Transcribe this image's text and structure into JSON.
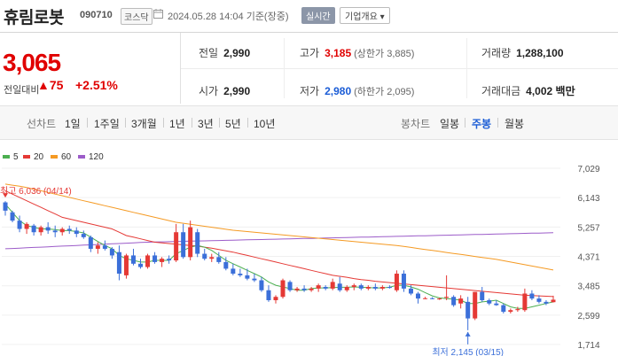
{
  "header": {
    "name": "휴림로봇",
    "code": "090710",
    "market": "코스닥",
    "datetime": "2024.05.28 14:04 기준(장중)",
    "realtime": "실시간",
    "company": "기업개요 ▾"
  },
  "price": {
    "current": "3,065",
    "change_label": "전일대비",
    "change": "▲75",
    "change_pct": "+2.51%"
  },
  "stats": {
    "prev_close_label": "전일",
    "prev_close": "2,990",
    "high_label": "고가",
    "high": "3,185",
    "upper_limit": "(상한가 3,885)",
    "volume_label": "거래량",
    "volume": "1,288,100",
    "open_label": "시가",
    "open": "2,990",
    "low_label": "저가",
    "low": "2,980",
    "lower_limit": "(하한가 2,095)",
    "value_label": "거래대금",
    "value": "4,002 백만"
  },
  "tabs": {
    "line_label": "선차트",
    "line_items": [
      "1일",
      "1주일",
      "3개월",
      "1년",
      "3년",
      "5년",
      "10년"
    ],
    "candle_label": "봉차트",
    "candle_items": [
      "일봉",
      "주봉",
      "월봉"
    ],
    "active_candle": "주봉"
  },
  "legend": [
    {
      "label": "5",
      "color": "#4caf50"
    },
    {
      "label": "20",
      "color": "#e53935"
    },
    {
      "label": "60",
      "color": "#f59a23"
    },
    {
      "label": "120",
      "color": "#9c5cc9"
    }
  ],
  "chart_data": {
    "type": "candlestick",
    "period": "weekly",
    "y_ticks": [
      "7,029",
      "6,143",
      "5,257",
      "4,371",
      "3,485",
      "2,599",
      "1,714"
    ],
    "ylim": [
      1714,
      7029
    ],
    "high_annotation": "최고 6,036 (04/14)",
    "low_annotation": "최저 2,145 (03/15)",
    "up_color": "#e53935",
    "down_color": "#3b6fd9",
    "candles": [
      [
        6000,
        6036,
        5600,
        5750
      ],
      [
        5700,
        5750,
        5400,
        5450
      ],
      [
        5450,
        5600,
        5100,
        5200
      ],
      [
        5200,
        5400,
        5050,
        5350
      ],
      [
        5300,
        5350,
        5000,
        5100
      ],
      [
        5100,
        5300,
        5000,
        5250
      ],
      [
        5250,
        5400,
        5050,
        5150
      ],
      [
        5150,
        5300,
        4950,
        5100
      ],
      [
        5100,
        5250,
        5000,
        5200
      ],
      [
        5200,
        5300,
        5050,
        5150
      ],
      [
        5150,
        5250,
        4950,
        5050
      ],
      [
        5050,
        5150,
        4900,
        4950
      ],
      [
        4950,
        5000,
        4500,
        4600
      ],
      [
        4600,
        4800,
        4450,
        4700
      ],
      [
        4700,
        4850,
        4550,
        4600
      ],
      [
        4600,
        4650,
        4300,
        4400
      ],
      [
        4500,
        4700,
        3650,
        3850
      ],
      [
        3800,
        4450,
        3700,
        4400
      ],
      [
        4400,
        4600,
        4100,
        4150
      ],
      [
        4150,
        4300,
        4000,
        4050
      ],
      [
        4050,
        4450,
        4000,
        4400
      ],
      [
        4400,
        4500,
        4150,
        4200
      ],
      [
        4200,
        4350,
        4050,
        4300
      ],
      [
        4300,
        4400,
        4150,
        4250
      ],
      [
        4250,
        5350,
        4200,
        5100
      ],
      [
        5100,
        5350,
        4300,
        4350
      ],
      [
        4350,
        5450,
        4250,
        5250
      ],
      [
        5100,
        5200,
        4350,
        4450
      ],
      [
        4450,
        4600,
        4250,
        4300
      ],
      [
        4300,
        4450,
        4200,
        4350
      ],
      [
        4350,
        4500,
        4150,
        4200
      ],
      [
        4200,
        4350,
        3950,
        4000
      ],
      [
        4000,
        4150,
        3800,
        3850
      ],
      [
        3850,
        4000,
        3750,
        3800
      ],
      [
        3800,
        4000,
        3650,
        3700
      ],
      [
        3700,
        3850,
        3600,
        3650
      ],
      [
        3650,
        3750,
        3300,
        3350
      ],
      [
        3350,
        3500,
        3000,
        3050
      ],
      [
        3050,
        3200,
        2950,
        3150
      ],
      [
        3150,
        3700,
        3100,
        3650
      ],
      [
        3600,
        3650,
        3300,
        3350
      ],
      [
        3350,
        3450,
        3300,
        3400
      ],
      [
        3400,
        3500,
        3300,
        3350
      ],
      [
        3350,
        3450,
        3300,
        3400
      ],
      [
        3400,
        3550,
        3300,
        3500
      ],
      [
        3450,
        3500,
        3350,
        3400
      ],
      [
        3400,
        3700,
        3350,
        3600
      ],
      [
        3550,
        3750,
        3300,
        3350
      ],
      [
        3350,
        3500,
        3300,
        3450
      ],
      [
        3450,
        3550,
        3350,
        3500
      ],
      [
        3500,
        3550,
        3350,
        3400
      ],
      [
        3400,
        3500,
        3350,
        3450
      ],
      [
        3450,
        3550,
        3350,
        3400
      ],
      [
        3400,
        3500,
        3350,
        3450
      ],
      [
        3450,
        3500,
        3400,
        3420
      ],
      [
        3350,
        3950,
        3300,
        3850
      ],
      [
        3850,
        3950,
        3300,
        3400
      ],
      [
        3400,
        3500,
        3200,
        3250
      ],
      [
        3250,
        3300,
        2950,
        3100
      ],
      [
        3100,
        3150,
        3080,
        3110
      ],
      [
        3110,
        3140,
        3080,
        3090
      ],
      [
        3090,
        3120,
        3060,
        3100
      ],
      [
        3150,
        3800,
        3050,
        3150
      ],
      [
        3150,
        3200,
        2850,
        2900
      ],
      [
        2950,
        3200,
        2800,
        3100
      ],
      [
        3000,
        3150,
        2145,
        2500
      ],
      [
        2500,
        3300,
        2450,
        3300
      ],
      [
        3300,
        3450,
        3000,
        3050
      ],
      [
        3050,
        3100,
        2900,
        2950
      ],
      [
        2950,
        3050,
        2880,
        2900
      ],
      [
        2900,
        2950,
        2650,
        2700
      ],
      [
        2700,
        2800,
        2650,
        2750
      ],
      [
        2750,
        2850,
        2700,
        2780
      ],
      [
        2750,
        3400,
        2700,
        3250
      ],
      [
        3250,
        3350,
        3050,
        3100
      ],
      [
        3100,
        3200,
        2950,
        3000
      ],
      [
        3000,
        3050,
        2900,
        2950
      ],
      [
        2990,
        3185,
        2980,
        3065
      ]
    ],
    "ma5": [
      5950,
      5700,
      5450,
      5300,
      5250,
      5200,
      5200,
      5180,
      5150,
      5150,
      5120,
      5080,
      4950,
      4820,
      4700,
      4600,
      4400,
      4300,
      4250,
      4200,
      4200,
      4250,
      4250,
      4250,
      4450,
      4550,
      4650,
      4700,
      4650,
      4550,
      4400,
      4250,
      4150,
      4050,
      3950,
      3850,
      3750,
      3600,
      3500,
      3450,
      3400,
      3350,
      3350,
      3400,
      3420,
      3420,
      3430,
      3440,
      3440,
      3450,
      3440,
      3430,
      3420,
      3420,
      3440,
      3500,
      3500,
      3450,
      3380,
      3280,
      3180,
      3120,
      3100,
      3080,
      3050,
      2950,
      2950,
      3000,
      3020,
      3050,
      2950,
      2850,
      2800,
      2800,
      2850,
      2900,
      2950,
      3000
    ],
    "ma20": [
      6350,
      6250,
      6150,
      6050,
      5950,
      5850,
      5750,
      5650,
      5550,
      5500,
      5450,
      5400,
      5350,
      5300,
      5250,
      5200,
      5100,
      5000,
      4950,
      4900,
      4850,
      4800,
      4780,
      4760,
      4740,
      4720,
      4700,
      4680,
      4650,
      4620,
      4580,
      4540,
      4500,
      4450,
      4400,
      4350,
      4300,
      4250,
      4200,
      4150,
      4100,
      4050,
      4000,
      3950,
      3900,
      3850,
      3800,
      3770,
      3740,
      3700,
      3670,
      3650,
      3620,
      3600,
      3580,
      3560,
      3540,
      3520,
      3500,
      3480,
      3460,
      3440,
      3420,
      3400,
      3380,
      3360,
      3340,
      3320,
      3300,
      3280,
      3260,
      3240,
      3220,
      3200,
      3190,
      3180,
      3170,
      3160
    ],
    "ma60": [
      6550,
      6520,
      6490,
      6450,
      6400,
      6350,
      6300,
      6250,
      6200,
      6150,
      6100,
      6050,
      6000,
      5950,
      5900,
      5850,
      5800,
      5750,
      5700,
      5650,
      5600,
      5550,
      5500,
      5450,
      5400,
      5370,
      5340,
      5310,
      5280,
      5250,
      5220,
      5190,
      5160,
      5140,
      5120,
      5100,
      5080,
      5060,
      5040,
      5020,
      5000,
      4980,
      4960,
      4940,
      4920,
      4900,
      4880,
      4860,
      4840,
      4820,
      4800,
      4780,
      4760,
      4740,
      4720,
      4700,
      4670,
      4640,
      4610,
      4580,
      4550,
      4520,
      4490,
      4460,
      4430,
      4400,
      4370,
      4340,
      4310,
      4280,
      4240,
      4200,
      4160,
      4120,
      4080,
      4040,
      4000,
      3960
    ],
    "ma120": [
      4600,
      4610,
      4620,
      4630,
      4640,
      4650,
      4660,
      4670,
      4680,
      4690,
      4700,
      4710,
      4720,
      4730,
      4740,
      4750,
      4760,
      4770,
      4780,
      4790,
      4800,
      4805,
      4810,
      4815,
      4820,
      4825,
      4830,
      4835,
      4840,
      4845,
      4850,
      4855,
      4860,
      4865,
      4870,
      4875,
      4880,
      4885,
      4890,
      4895,
      4900,
      4905,
      4910,
      4915,
      4920,
      4925,
      4930,
      4935,
      4940,
      4945,
      4950,
      4955,
      4960,
      4965,
      4970,
      4975,
      4980,
      4985,
      4990,
      4995,
      5000,
      5005,
      5010,
      5015,
      5020,
      5025,
      5030,
      5035,
      5040,
      5045,
      5050,
      5055,
      5060,
      5065,
      5070,
      5075,
      5080,
      5085
    ]
  }
}
